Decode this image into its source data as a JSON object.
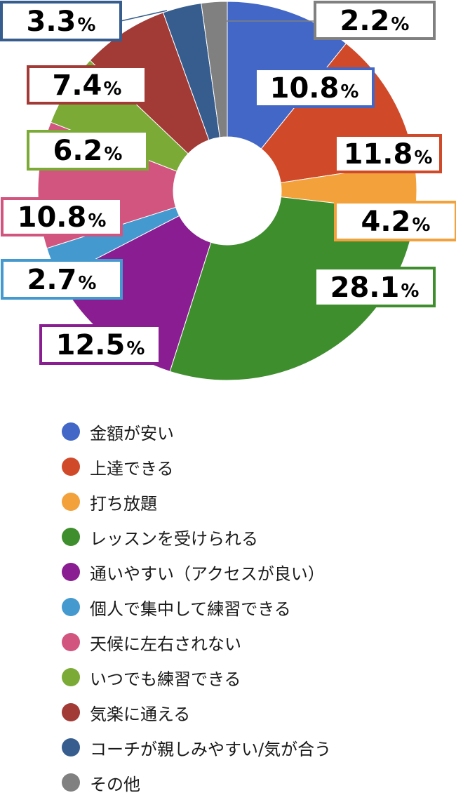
{
  "chart_data": {
    "type": "pie",
    "title": "",
    "donut": true,
    "percent_suffix": "%",
    "slices": [
      {
        "label": "金額が安い",
        "value": 10.8,
        "value_label": "10.8",
        "color": "#4267C6"
      },
      {
        "label": "上達できる",
        "value": 11.8,
        "value_label": "11.8",
        "color": "#D04A2A"
      },
      {
        "label": "打ち放題",
        "value": 4.2,
        "value_label": "4.2",
        "color": "#F2A13B"
      },
      {
        "label": "レッスンを受けられる",
        "value": 28.1,
        "value_label": "28.1",
        "color": "#3F8E2E"
      },
      {
        "label": "通いやすい（アクセスが良い）",
        "value": 12.5,
        "value_label": "12.5",
        "color": "#8A1D91"
      },
      {
        "label": "個人で集中して練習できる",
        "value": 2.7,
        "value_label": "2.7",
        "color": "#4499CE"
      },
      {
        "label": "天候に左右されない",
        "value": 10.8,
        "value_label": "10.8",
        "color": "#D2557F"
      },
      {
        "label": "いつでも練習できる",
        "value": 6.2,
        "value_label": "6.2",
        "color": "#7BAA36"
      },
      {
        "label": "気楽に通える",
        "value": 7.4,
        "value_label": "7.4",
        "color": "#A23A36"
      },
      {
        "label": "コーチが親しみやすい/気が合う",
        "value": 3.3,
        "value_label": "3.3",
        "color": "#365D8E"
      },
      {
        "label": "その他",
        "value": 2.2,
        "value_label": "2.2",
        "color": "#808080"
      }
    ],
    "legend_position": "bottom"
  }
}
